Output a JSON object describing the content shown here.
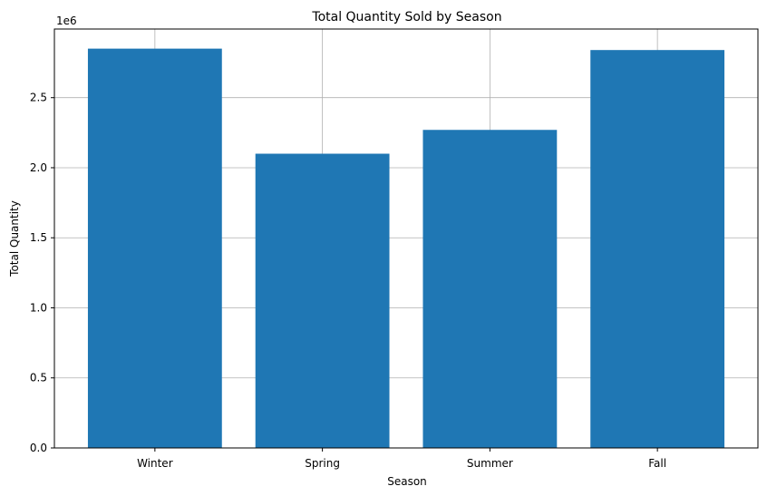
{
  "chart_data": {
    "type": "bar",
    "title": "Total Quantity Sold by Season",
    "xlabel": "Season",
    "ylabel": "Total Quantity",
    "y_scale_label": "1e6",
    "categories": [
      "Winter",
      "Spring",
      "Summer",
      "Fall"
    ],
    "values": [
      2850000,
      2100000,
      2270000,
      2840000
    ],
    "ylim": [
      0,
      2990000
    ],
    "yticks": [
      0,
      500000,
      1000000,
      1500000,
      2000000,
      2500000
    ],
    "ytick_labels": [
      "0.0",
      "0.5",
      "1.0",
      "1.5",
      "2.0",
      "2.5"
    ],
    "grid": true,
    "bar_color": "#1f77b4",
    "grid_color": "#b0b0b0"
  }
}
